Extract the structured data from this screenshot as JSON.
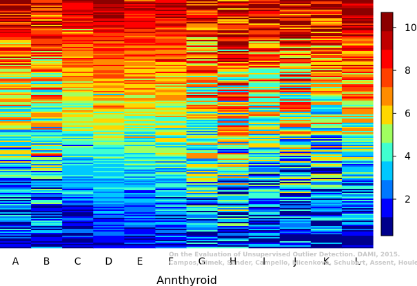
{
  "chart_data": {
    "type": "heatmap",
    "title": "",
    "xlabel": "Annthyroid",
    "ylabel": "",
    "categories": [
      "A",
      "B",
      "C",
      "D",
      "E",
      "F",
      "G",
      "H",
      "I",
      "J",
      "K",
      "L"
    ],
    "colorbar": {
      "range": [
        0.3,
        10.7
      ],
      "ticks": [
        2,
        4,
        6,
        8,
        10
      ],
      "colors": [
        "#00008b",
        "#0000ff",
        "#0078ff",
        "#00c8ff",
        "#40ffd0",
        "#a0ff60",
        "#ffd700",
        "#ff8c00",
        "#ff4000",
        "#ff0000",
        "#c00000",
        "#8b0000"
      ]
    },
    "column_profiles": [
      {
        "name": "A",
        "top": 9.6,
        "bottom": 1.0,
        "noise": 2.4
      },
      {
        "name": "B",
        "top": 9.4,
        "bottom": 1.3,
        "noise": 2.6
      },
      {
        "name": "C",
        "top": 9.8,
        "bottom": 0.8,
        "noise": 1.2
      },
      {
        "name": "D",
        "top": 10.2,
        "bottom": 1.3,
        "noise": 0.9
      },
      {
        "name": "E",
        "top": 9.7,
        "bottom": 1.3,
        "noise": 1.1
      },
      {
        "name": "F",
        "top": 9.6,
        "bottom": 1.5,
        "noise": 1.4
      },
      {
        "name": "G",
        "top": 9.3,
        "bottom": 1.6,
        "noise": 2.6
      },
      {
        "name": "H",
        "top": 9.2,
        "bottom": 2.0,
        "noise": 3.2
      },
      {
        "name": "I",
        "top": 9.5,
        "bottom": 1.0,
        "noise": 2.4
      },
      {
        "name": "J",
        "top": 9.5,
        "bottom": 1.3,
        "noise": 3.0
      },
      {
        "name": "K",
        "top": 9.4,
        "bottom": 1.0,
        "noise": 2.7
      },
      {
        "name": "L",
        "top": 10.3,
        "bottom": 1.0,
        "noise": 2.0
      }
    ],
    "grid": false,
    "legend": "right"
  },
  "watermark": {
    "line1": "On the Evaluation of Unsupervised Outlier Detection. DAMI, 2015.",
    "line2": "Campos, Zimek, Sander, Campello, Micenková, Schubert, Assent, Houle"
  }
}
